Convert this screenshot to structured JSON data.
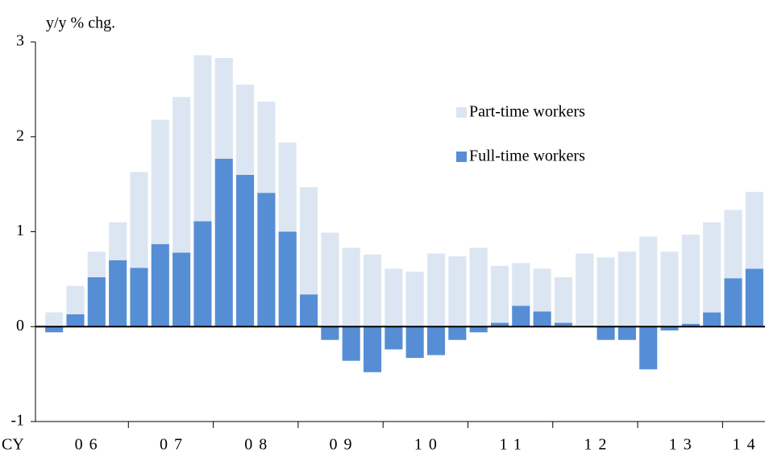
{
  "chart_data": {
    "type": "bar",
    "stacked": true,
    "y_axis_label": "y/y % chg.",
    "x_axis_label": "CY",
    "categories": [
      "06",
      null,
      null,
      null,
      "07",
      null,
      null,
      null,
      "08",
      null,
      null,
      null,
      "09",
      null,
      null,
      null,
      "10",
      null,
      null,
      null,
      "11",
      null,
      null,
      null,
      "12",
      null,
      null,
      null,
      "13",
      null,
      null,
      null,
      "14",
      null
    ],
    "series": [
      {
        "name": "Full-time workers",
        "color": "#558ed5",
        "values": [
          -0.06,
          0.13,
          0.52,
          0.7,
          0.62,
          0.87,
          0.78,
          1.11,
          1.77,
          1.6,
          1.41,
          1.0,
          0.34,
          -0.14,
          -0.36,
          -0.48,
          -0.24,
          -0.33,
          -0.3,
          -0.14,
          -0.06,
          0.04,
          0.22,
          0.16,
          0.04,
          0,
          -0.14,
          -0.14,
          -0.45,
          -0.04,
          0.03,
          0.15,
          0.51,
          0.61
        ]
      },
      {
        "name": "Part-time workers",
        "color": "#dce6f2",
        "values": [
          0.15,
          0.3,
          0.27,
          0.4,
          1.01,
          1.31,
          1.64,
          1.75,
          1.06,
          0.95,
          0.96,
          0.94,
          1.13,
          0.99,
          0.83,
          0.76,
          0.61,
          0.58,
          0.77,
          0.74,
          0.83,
          0.6,
          0.45,
          0.45,
          0.48,
          0.77,
          0.73,
          0.79,
          0.95,
          0.79,
          0.94,
          0.95,
          0.72,
          0.81
        ]
      }
    ],
    "legend_order": [
      1,
      0
    ],
    "ylim": [
      -1,
      3
    ],
    "yticks": [
      -1,
      0,
      1,
      2,
      3
    ]
  }
}
